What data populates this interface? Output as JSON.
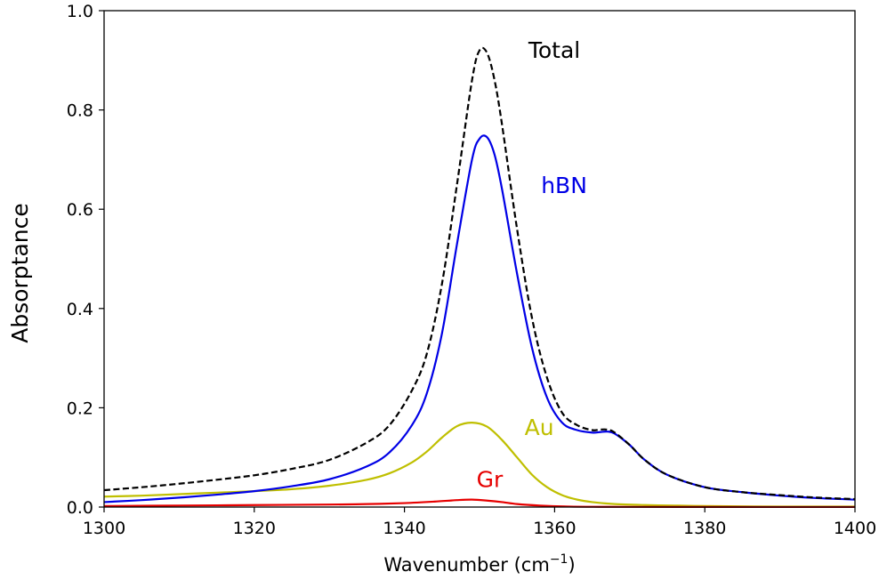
{
  "chart_data": {
    "type": "line",
    "title": "",
    "xlabel": "Wavenumber (cm",
    "xlabel_sup": "−1",
    "xlabel_end": ")",
    "ylabel": "Absorptance",
    "xlim": [
      1300,
      1400
    ],
    "ylim": [
      0,
      1.0
    ],
    "grid": false,
    "legend": "none (inline series labels)",
    "x_ticks": [
      "1300",
      "1320",
      "1340",
      "1360",
      "1380",
      "1400"
    ],
    "y_ticks": [
      "0.0",
      "0.2",
      "0.4",
      "0.6",
      "0.8",
      "1.0"
    ],
    "series": [
      {
        "name": "Total",
        "color": "#000000",
        "dashed": true,
        "x": [
          1300,
          1305,
          1310,
          1315,
          1320,
          1325,
          1330,
          1335,
          1338,
          1341,
          1343,
          1345,
          1347,
          1349,
          1350,
          1351,
          1352,
          1353,
          1355,
          1357,
          1359,
          1361,
          1363,
          1365,
          1366,
          1367,
          1368,
          1370,
          1372,
          1375,
          1380,
          1385,
          1390,
          1395,
          1400
        ],
        "y": [
          0.034,
          0.04,
          0.047,
          0.055,
          0.064,
          0.077,
          0.095,
          0.13,
          0.165,
          0.235,
          0.31,
          0.45,
          0.65,
          0.86,
          0.92,
          0.915,
          0.86,
          0.77,
          0.56,
          0.38,
          0.26,
          0.19,
          0.165,
          0.155,
          0.156,
          0.156,
          0.15,
          0.125,
          0.095,
          0.065,
          0.04,
          0.03,
          0.024,
          0.019,
          0.016
        ]
      },
      {
        "name": "hBN",
        "color": "#0000e6",
        "dashed": false,
        "x": [
          1300,
          1305,
          1310,
          1315,
          1320,
          1325,
          1330,
          1335,
          1338,
          1341,
          1343,
          1345,
          1347,
          1349,
          1350,
          1351,
          1352,
          1353,
          1355,
          1357,
          1359,
          1361,
          1363,
          1365,
          1366,
          1367,
          1368,
          1370,
          1372,
          1375,
          1380,
          1385,
          1390,
          1395,
          1400
        ],
        "y": [
          0.01,
          0.014,
          0.019,
          0.025,
          0.032,
          0.042,
          0.056,
          0.082,
          0.11,
          0.165,
          0.23,
          0.35,
          0.53,
          0.7,
          0.742,
          0.745,
          0.71,
          0.64,
          0.47,
          0.32,
          0.22,
          0.17,
          0.155,
          0.15,
          0.151,
          0.152,
          0.148,
          0.125,
          0.095,
          0.065,
          0.04,
          0.03,
          0.023,
          0.018,
          0.015
        ]
      },
      {
        "name": "Au",
        "color": "#bfbf00",
        "dashed": false,
        "x": [
          1300,
          1305,
          1310,
          1315,
          1320,
          1325,
          1330,
          1335,
          1338,
          1341,
          1343,
          1345,
          1347,
          1349,
          1351,
          1353,
          1355,
          1357,
          1359,
          1361,
          1363,
          1365,
          1368,
          1372,
          1376,
          1380,
          1390,
          1400
        ],
        "y": [
          0.021,
          0.023,
          0.026,
          0.029,
          0.032,
          0.036,
          0.043,
          0.055,
          0.068,
          0.09,
          0.112,
          0.14,
          0.163,
          0.17,
          0.162,
          0.135,
          0.1,
          0.065,
          0.04,
          0.024,
          0.015,
          0.01,
          0.006,
          0.004,
          0.003,
          0.002,
          0.001,
          0.001
        ]
      },
      {
        "name": "Gr",
        "color": "#e60000",
        "dashed": false,
        "x": [
          1300,
          1310,
          1320,
          1330,
          1335,
          1340,
          1344,
          1347,
          1349,
          1351,
          1353,
          1355,
          1358,
          1362,
          1366,
          1370,
          1380,
          1400
        ],
        "y": [
          0.002,
          0.003,
          0.004,
          0.005,
          0.006,
          0.008,
          0.011,
          0.014,
          0.015,
          0.013,
          0.01,
          0.006,
          0.003,
          0.001,
          0.0005,
          0.0003,
          0.0002,
          0.0001
        ]
      }
    ],
    "annotations": [
      {
        "text": "Total",
        "x": 1356.5,
        "y": 0.905,
        "color": "#000000"
      },
      {
        "text": "hBN",
        "x": 1358.2,
        "y": 0.633,
        "color": "#0000e6"
      },
      {
        "text": "Au",
        "x": 1356.0,
        "y": 0.145,
        "color": "#bfbf00"
      },
      {
        "text": "Gr",
        "x": 1349.6,
        "y": 0.04,
        "color": "#e60000"
      }
    ]
  }
}
